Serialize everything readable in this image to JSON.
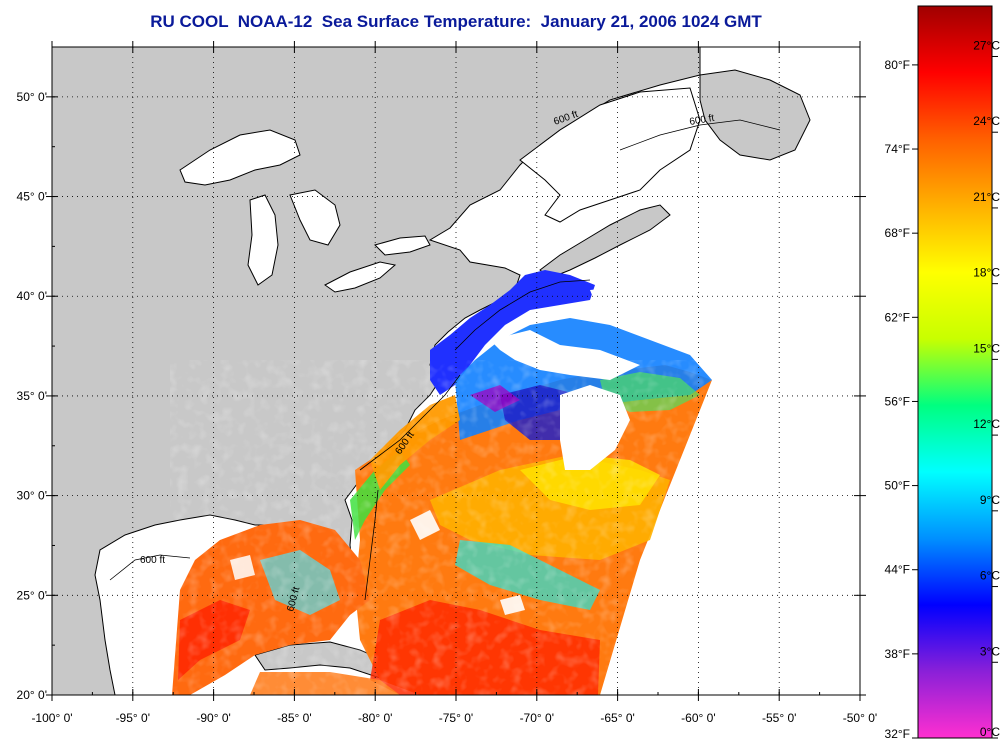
{
  "title": "RU COOL  NOAA-12  Sea Surface Temperature:  January 21, 2006 1024 GMT",
  "map": {
    "lon_range": [
      -100,
      -50
    ],
    "lat_range": [
      20,
      52.5
    ],
    "lat_ticks": [
      {
        "value": 50,
        "label": "50° 0'"
      },
      {
        "value": 45,
        "label": "45° 0'"
      },
      {
        "value": 40,
        "label": "40° 0'"
      },
      {
        "value": 35,
        "label": "35° 0'"
      },
      {
        "value": 30,
        "label": "30° 0'"
      },
      {
        "value": 25,
        "label": "25° 0'"
      },
      {
        "value": 20,
        "label": "20° 0'"
      }
    ],
    "lon_ticks": [
      {
        "value": -100,
        "label": "-100° 0'"
      },
      {
        "value": -95,
        "label": "-95° 0'"
      },
      {
        "value": -90,
        "label": "-90° 0'"
      },
      {
        "value": -85,
        "label": "-85° 0'"
      },
      {
        "value": -80,
        "label": "-80° 0'"
      },
      {
        "value": -75,
        "label": "-75° 0'"
      },
      {
        "value": -70,
        "label": "-70° 0'"
      },
      {
        "value": -65,
        "label": "-65° 0'"
      },
      {
        "value": -60,
        "label": "-60° 0'"
      },
      {
        "value": -55,
        "label": "-55° 0'"
      },
      {
        "value": -50,
        "label": "-50° 0'"
      }
    ],
    "contour_labels": [
      "600 ft",
      "600 ft",
      "600 ft",
      "600 ft",
      "600 ft"
    ],
    "colors": {
      "land": "#c8c8c8",
      "no_data": "#ffffff",
      "coast": "#000000"
    }
  },
  "colorbar": {
    "celsius_range": [
      0,
      29
    ],
    "celsius_ticks": [
      {
        "value": 27,
        "label": "27°C"
      },
      {
        "value": 24,
        "label": "24°C"
      },
      {
        "value": 21,
        "label": "21°C"
      },
      {
        "value": 18,
        "label": "18°C"
      },
      {
        "value": 15,
        "label": "15°C"
      },
      {
        "value": 12,
        "label": "12°C"
      },
      {
        "value": 9,
        "label": "9°C"
      },
      {
        "value": 6,
        "label": "6°C"
      },
      {
        "value": 3,
        "label": "3°C"
      },
      {
        "value": 0,
        "label": "0°C"
      }
    ],
    "fahrenheit_ticks": [
      {
        "value": 80,
        "label": "80°F"
      },
      {
        "value": 74,
        "label": "74°F"
      },
      {
        "value": 68,
        "label": "68°F"
      },
      {
        "value": 62,
        "label": "62°F"
      },
      {
        "value": 56,
        "label": "56°F"
      },
      {
        "value": 50,
        "label": "50°F"
      },
      {
        "value": 44,
        "label": "44°F"
      },
      {
        "value": 38,
        "label": "38°F"
      },
      {
        "value": 32,
        "label": "32°F"
      }
    ],
    "gradient_stops": [
      "#ff2fd0",
      "#8a20d8",
      "#0000ff",
      "#0090ff",
      "#00ffff",
      "#00ff80",
      "#c8ff00",
      "#ffff00",
      "#ffb000",
      "#ff6000",
      "#ff0000",
      "#a00000"
    ]
  }
}
